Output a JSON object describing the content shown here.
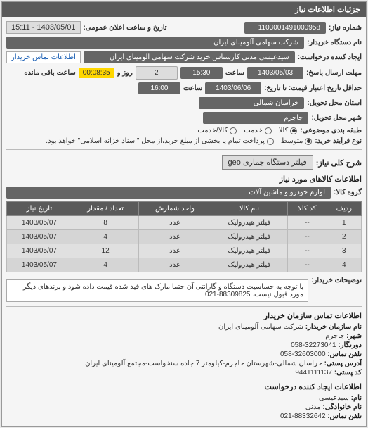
{
  "header": {
    "title": "جزئیات اطلاعات نیاز"
  },
  "fields": {
    "request_number_label": "شماره نیاز:",
    "request_number": "1103001491000958",
    "announce_datetime_label": "تاریخ و ساعت اعلان عمومی:",
    "announce_datetime": "1403/05/01 - 15:11",
    "buyer_org_label": "نام دستگاه خریدار:",
    "buyer_org": "شرکت سهامی آلومینای ایران",
    "creator_label": "ایجاد کننده درخواست:",
    "creator": "سیدعیسی مدنی کارشناس خرید شرکت سهامی آلومینای ایران",
    "contact_link": "اطلاعات تماس خریدار",
    "deadline_reply_label": "مهلت ارسال پاسخ:",
    "deadline_date_field": "1403/05/03",
    "time_label": "ساعت",
    "deadline_time": "15:30",
    "days_label": "روز و",
    "days_value": "2",
    "remain_label": "ساعت باقی مانده",
    "remain_time": "00:08:35",
    "price_validity_label": "حداقل تاریخ اعتبار قیمت: تا تاریخ:",
    "price_validity_date": "1403/06/06",
    "price_validity_time": "16:00",
    "delivery_province_label": "استان محل تحویل:",
    "delivery_province": "خراسان شمالی",
    "delivery_city_label": "شهر محل تحویل:",
    "delivery_city": "جاجرم",
    "subject_group_label": "طبقه بندی موضوعی:",
    "subject_radios": {
      "goods": "کالا",
      "service": "خدمت",
      "goods_service": "کالا/خدمت"
    },
    "purchase_type_label": "نوع فرآیند خرید:",
    "purchase_radios": {
      "medium": "متوسط",
      "payment_note": "پرداخت تمام یا بخشی از مبلغ خرید،از محل \"اسناد خزانه اسلامی\" خواهد بود."
    }
  },
  "description": {
    "title_label": "شرح کلی نیاز:",
    "title_value": "فیلتر دستگاه جماری geo"
  },
  "goods_section": {
    "header": "اطلاعات کالاهای مورد نیاز",
    "group_label": "گروه کالا:",
    "group_value": "لوازم خودرو و ماشین آلات"
  },
  "table": {
    "columns": [
      "ردیف",
      "کد کالا",
      "نام کالا",
      "واحد شمارش",
      "تعداد / مقدار",
      "تاریخ نیاز"
    ],
    "rows": [
      [
        "1",
        "--",
        "فیلتر هیدرولیک",
        "عدد",
        "8",
        "1403/05/07"
      ],
      [
        "2",
        "--",
        "فیلتر هیدرولیک",
        "عدد",
        "4",
        "1403/05/07"
      ],
      [
        "3",
        "--",
        "فیلتر هیدرولیک",
        "عدد",
        "12",
        "1403/05/07"
      ],
      [
        "4",
        "--",
        "فیلتر هیدرولیک",
        "عدد",
        "4",
        "1403/05/07"
      ]
    ]
  },
  "buyer_note": {
    "label": "توضیحات خریدار:",
    "text": "با توجه به حساسیت دستگاه و گارانتی آن حتما مارک های قید شده قیمت داده شود و برندهای دیگر مورد قبول نیست. 88309825-021"
  },
  "contact_section": {
    "header": "اطلاعات تماس سازمان خریدار",
    "lines": {
      "org_name_label": "نام سازمان خریدار:",
      "org_name": "شرکت سهامی آلومینای ایران",
      "city_label": "شهر:",
      "city": "جاجرم",
      "fax_label": "دورنگار:",
      "fax": "32273041-058",
      "phone_label": "تلفن تماس:",
      "phone": "32603000-058",
      "postal_label": "آدرس پستی:",
      "postal": "خراسان شمالی-شهرستان جاجرم-کیلومتر 7 جاده سنخواست-مجتمع آلومینای ایران",
      "postcode_label": "کد پستی:",
      "postcode": "9441111137"
    }
  },
  "requester_section": {
    "header": "اطلاعات ایجاد کننده درخواست",
    "lines": {
      "name_label": "نام:",
      "name": "سیدعیسی",
      "family_label": "نام خانوادگی:",
      "family": "مدنی",
      "phone_label": "تلفن تماس:",
      "phone": "88332642-021"
    }
  }
}
